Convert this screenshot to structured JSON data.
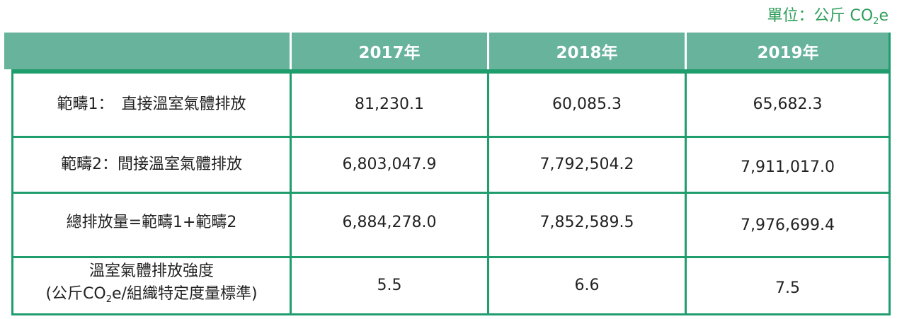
{
  "unit_label": {
    "prefix": "單位：公斤 CO",
    "sub": "2",
    "suffix": "e"
  },
  "header": {
    "columns": [
      "",
      "2017年",
      "2018年",
      "2019年"
    ]
  },
  "rows": [
    {
      "label": "範疇1：　直接溫室氣體排放",
      "values": [
        "81,230.1",
        "60,085.3",
        "65,682.3"
      ]
    },
    {
      "label": "範疇2：間接溫室氣體排放",
      "values": [
        "6,803,047.9",
        "7,792,504.2",
        "7,911,017.0"
      ]
    },
    {
      "label": "總排放量=範疇1+範疇2",
      "values": [
        "6,884,278.0",
        "7,852,589.5",
        "7,976,699.4"
      ]
    }
  ],
  "intensity_row": {
    "label_line1": "溫室氣體排放強度",
    "label_line2_prefix": "(公斤CO",
    "label_line2_sub": "2",
    "label_line2_suffix": "e/組織特定度量標準)",
    "values": [
      "5.5",
      "6.6",
      "7.5"
    ]
  },
  "colors": {
    "header_bg": "#67b39c",
    "border": "#1f9d6d",
    "unit_text": "#2e9e5b"
  }
}
